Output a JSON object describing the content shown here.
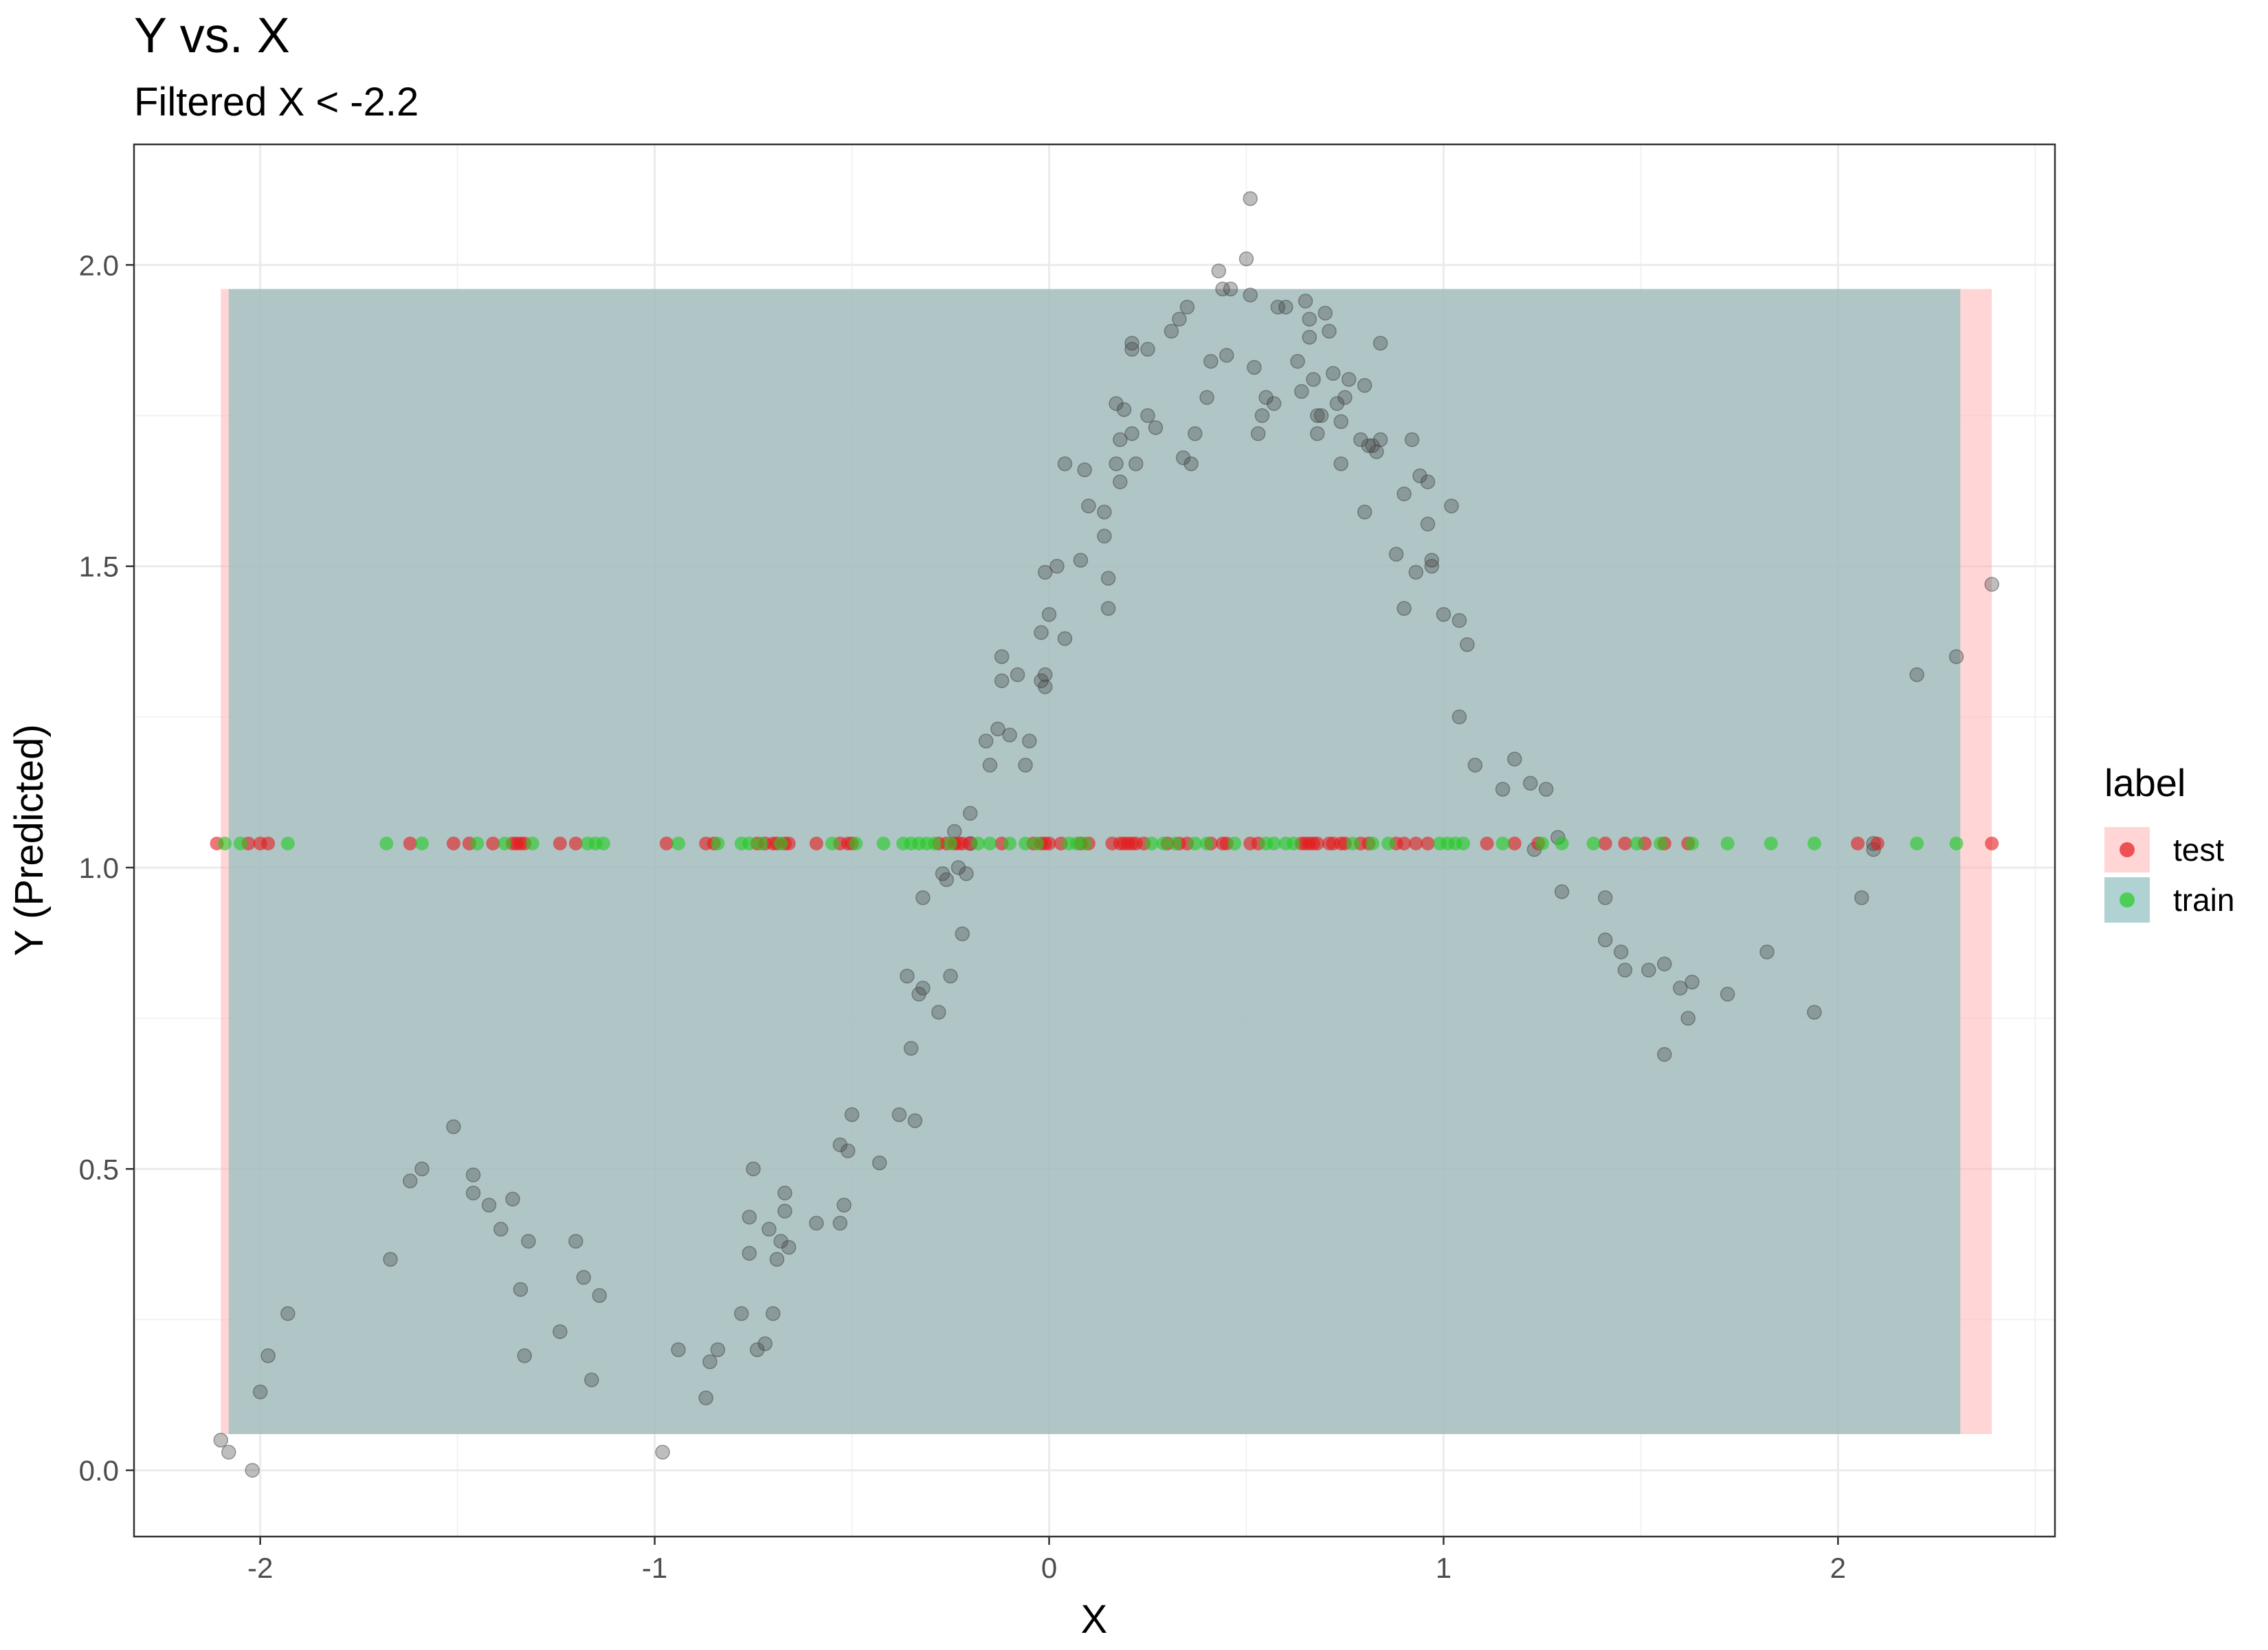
{
  "chart_data": {
    "type": "scatter",
    "title": "Y vs. X",
    "subtitle": "Filtered X < -2.2",
    "xlabel": "X",
    "ylabel": "Y (Predicted)",
    "xlim": [
      -2.32,
      2.55
    ],
    "ylim": [
      -0.11,
      2.2
    ],
    "x_ticks": [
      -2,
      -1,
      0,
      1,
      2
    ],
    "x_tick_labels": [
      "-2",
      "-1",
      "0",
      "1",
      "2"
    ],
    "y_ticks": [
      0.0,
      0.5,
      1.0,
      1.5,
      2.0
    ],
    "y_tick_labels": [
      "0.0",
      "0.5",
      "1.0",
      "1.5",
      "2.0"
    ],
    "grid": true,
    "legend": {
      "title": "label",
      "position": "right",
      "entries": [
        {
          "name": "test",
          "color": "#e41a1c"
        },
        {
          "name": "train",
          "color": "#22cc22"
        }
      ]
    },
    "bands": [
      {
        "name": "test",
        "x_range": [
          -2.1,
          2.39
        ],
        "y_range": [
          0.06,
          1.96
        ],
        "color": "#ffb3b3"
      },
      {
        "name": "train",
        "x_range": [
          -2.08,
          2.31
        ],
        "y_range": [
          0.06,
          1.96
        ],
        "color": "#8fbfbf"
      }
    ],
    "rug_y": 1.04,
    "series": [
      {
        "name": "predicted",
        "color": "#444444",
        "points": [
          [
            -2.1,
            0.05
          ],
          [
            -2.08,
            0.03
          ],
          [
            -2.02,
            0.0
          ],
          [
            -2.0,
            0.13
          ],
          [
            -1.98,
            0.19
          ],
          [
            -1.93,
            0.26
          ],
          [
            -1.67,
            0.35
          ],
          [
            -1.62,
            0.48
          ],
          [
            -1.59,
            0.5
          ],
          [
            -1.51,
            0.57
          ],
          [
            -1.46,
            0.49
          ],
          [
            -1.46,
            0.46
          ],
          [
            -1.42,
            0.44
          ],
          [
            -1.39,
            0.4
          ],
          [
            -1.36,
            0.45
          ],
          [
            -1.34,
            0.3
          ],
          [
            -1.33,
            0.19
          ],
          [
            -1.32,
            0.38
          ],
          [
            -1.24,
            0.23
          ],
          [
            -1.2,
            0.38
          ],
          [
            -1.18,
            0.32
          ],
          [
            -1.16,
            0.15
          ],
          [
            -1.14,
            0.29
          ],
          [
            -0.98,
            0.03
          ],
          [
            -0.94,
            0.2
          ],
          [
            -0.87,
            0.12
          ],
          [
            -0.86,
            0.18
          ],
          [
            -0.84,
            0.2
          ],
          [
            -0.78,
            0.26
          ],
          [
            -0.76,
            0.36
          ],
          [
            -0.76,
            0.42
          ],
          [
            -0.75,
            0.5
          ],
          [
            -0.74,
            0.2
          ],
          [
            -0.72,
            0.21
          ],
          [
            -0.71,
            0.4
          ],
          [
            -0.7,
            0.26
          ],
          [
            -0.69,
            0.35
          ],
          [
            -0.68,
            0.38
          ],
          [
            -0.67,
            0.46
          ],
          [
            -0.67,
            0.43
          ],
          [
            -0.66,
            0.37
          ],
          [
            -0.59,
            0.41
          ],
          [
            -0.53,
            0.41
          ],
          [
            -0.53,
            0.54
          ],
          [
            -0.52,
            0.44
          ],
          [
            -0.51,
            0.53
          ],
          [
            -0.5,
            0.59
          ],
          [
            -0.43,
            0.51
          ],
          [
            -0.38,
            0.59
          ],
          [
            -0.36,
            0.82
          ],
          [
            -0.35,
            0.7
          ],
          [
            -0.34,
            0.58
          ],
          [
            -0.33,
            0.79
          ],
          [
            -0.32,
            0.95
          ],
          [
            -0.32,
            0.8
          ],
          [
            -0.28,
            0.76
          ],
          [
            -0.27,
            0.99
          ],
          [
            -0.26,
            0.98
          ],
          [
            -0.25,
            0.82
          ],
          [
            -0.24,
            1.06
          ],
          [
            -0.23,
            1.0
          ],
          [
            -0.22,
            0.89
          ],
          [
            -0.21,
            0.99
          ],
          [
            -0.2,
            1.04
          ],
          [
            -0.2,
            1.09
          ],
          [
            -0.16,
            1.21
          ],
          [
            -0.15,
            1.17
          ],
          [
            -0.13,
            1.23
          ],
          [
            -0.12,
            1.35
          ],
          [
            -0.12,
            1.31
          ],
          [
            -0.1,
            1.22
          ],
          [
            -0.08,
            1.32
          ],
          [
            -0.06,
            1.17
          ],
          [
            -0.05,
            1.21
          ],
          [
            -0.02,
            1.31
          ],
          [
            -0.02,
            1.39
          ],
          [
            -0.01,
            1.3
          ],
          [
            -0.01,
            1.32
          ],
          [
            -0.01,
            1.49
          ],
          [
            0.0,
            1.42
          ],
          [
            0.02,
            1.5
          ],
          [
            0.04,
            1.38
          ],
          [
            0.04,
            1.67
          ],
          [
            0.08,
            1.51
          ],
          [
            0.09,
            1.66
          ],
          [
            0.1,
            1.6
          ],
          [
            0.14,
            1.55
          ],
          [
            0.14,
            1.59
          ],
          [
            0.15,
            1.43
          ],
          [
            0.15,
            1.48
          ],
          [
            0.17,
            1.67
          ],
          [
            0.17,
            1.77
          ],
          [
            0.18,
            1.64
          ],
          [
            0.18,
            1.71
          ],
          [
            0.19,
            1.76
          ],
          [
            0.21,
            1.86
          ],
          [
            0.21,
            1.87
          ],
          [
            0.21,
            1.72
          ],
          [
            0.22,
            1.67
          ],
          [
            0.25,
            1.86
          ],
          [
            0.25,
            1.75
          ],
          [
            0.27,
            1.73
          ],
          [
            0.31,
            1.89
          ],
          [
            0.33,
            1.91
          ],
          [
            0.34,
            1.68
          ],
          [
            0.35,
            1.93
          ],
          [
            0.36,
            1.67
          ],
          [
            0.37,
            1.72
          ],
          [
            0.4,
            1.78
          ],
          [
            0.41,
            1.84
          ],
          [
            0.43,
            1.99
          ],
          [
            0.44,
            1.96
          ],
          [
            0.45,
            1.85
          ],
          [
            0.46,
            1.96
          ],
          [
            0.5,
            2.01
          ],
          [
            0.51,
            1.95
          ],
          [
            0.51,
            2.11
          ],
          [
            0.52,
            1.83
          ],
          [
            0.53,
            1.72
          ],
          [
            0.54,
            1.75
          ],
          [
            0.55,
            1.78
          ],
          [
            0.57,
            1.77
          ],
          [
            0.58,
            1.93
          ],
          [
            0.6,
            1.93
          ],
          [
            0.63,
            1.84
          ],
          [
            0.64,
            1.79
          ],
          [
            0.65,
            1.94
          ],
          [
            0.66,
            1.88
          ],
          [
            0.66,
            1.91
          ],
          [
            0.67,
            1.81
          ],
          [
            0.68,
            1.72
          ],
          [
            0.68,
            1.75
          ],
          [
            0.69,
            1.75
          ],
          [
            0.7,
            1.92
          ],
          [
            0.71,
            1.89
          ],
          [
            0.72,
            1.82
          ],
          [
            0.73,
            1.77
          ],
          [
            0.74,
            1.74
          ],
          [
            0.74,
            1.67
          ],
          [
            0.75,
            1.78
          ],
          [
            0.76,
            1.81
          ],
          [
            0.79,
            1.71
          ],
          [
            0.8,
            1.59
          ],
          [
            0.8,
            1.8
          ],
          [
            0.81,
            1.7
          ],
          [
            0.82,
            1.7
          ],
          [
            0.83,
            1.69
          ],
          [
            0.84,
            1.71
          ],
          [
            0.84,
            1.87
          ],
          [
            0.88,
            1.52
          ],
          [
            0.9,
            1.43
          ],
          [
            0.9,
            1.62
          ],
          [
            0.92,
            1.71
          ],
          [
            0.93,
            1.49
          ],
          [
            0.94,
            1.65
          ],
          [
            0.96,
            1.57
          ],
          [
            0.96,
            1.64
          ],
          [
            0.97,
            1.5
          ],
          [
            0.97,
            1.51
          ],
          [
            1.0,
            1.42
          ],
          [
            1.02,
            1.6
          ],
          [
            1.04,
            1.25
          ],
          [
            1.04,
            1.41
          ],
          [
            1.06,
            1.37
          ],
          [
            1.08,
            1.17
          ],
          [
            1.15,
            1.13
          ],
          [
            1.18,
            1.18
          ],
          [
            1.22,
            1.14
          ],
          [
            1.23,
            1.03
          ],
          [
            1.26,
            1.13
          ],
          [
            1.29,
            1.05
          ],
          [
            1.3,
            0.96
          ],
          [
            1.41,
            0.95
          ],
          [
            1.41,
            0.88
          ],
          [
            1.45,
            0.86
          ],
          [
            1.46,
            0.83
          ],
          [
            1.52,
            0.83
          ],
          [
            1.56,
            0.84
          ],
          [
            1.56,
            0.69
          ],
          [
            1.6,
            0.8
          ],
          [
            1.62,
            0.75
          ],
          [
            1.63,
            0.81
          ],
          [
            1.72,
            0.79
          ],
          [
            1.82,
            0.86
          ],
          [
            1.94,
            0.76
          ],
          [
            2.06,
            0.95
          ],
          [
            2.09,
            1.04
          ],
          [
            2.09,
            1.03
          ],
          [
            2.2,
            1.32
          ],
          [
            2.3,
            1.35
          ],
          [
            2.39,
            1.47
          ]
        ]
      },
      {
        "name": "test",
        "color": "#e41a1c",
        "x": [
          -2.11,
          -2.03,
          -2.0,
          -1.98,
          -1.62,
          -1.51,
          -1.47,
          -1.41,
          -1.36,
          -1.35,
          -1.34,
          -1.33,
          -1.24,
          -1.2,
          -0.97,
          -0.87,
          -0.85,
          -0.74,
          -0.72,
          -0.7,
          -0.69,
          -0.67,
          -0.66,
          -0.59,
          -0.53,
          -0.51,
          -0.5,
          -0.28,
          -0.26,
          -0.24,
          -0.23,
          -0.22,
          -0.2,
          -0.12,
          -0.04,
          -0.02,
          -0.01,
          0.0,
          0.03,
          0.08,
          0.1,
          0.16,
          0.18,
          0.19,
          0.2,
          0.21,
          0.22,
          0.24,
          0.3,
          0.33,
          0.35,
          0.41,
          0.44,
          0.45,
          0.51,
          0.53,
          0.64,
          0.65,
          0.66,
          0.67,
          0.68,
          0.71,
          0.72,
          0.74,
          0.75,
          0.79,
          0.81,
          0.88,
          0.9,
          0.93,
          0.96,
          1.11,
          1.18,
          1.24,
          1.41,
          1.46,
          1.51,
          1.56,
          1.62,
          2.05,
          2.1,
          2.39
        ]
      },
      {
        "name": "train",
        "color": "#22cc22",
        "x": [
          -2.09,
          -2.05,
          -1.93,
          -1.68,
          -1.59,
          -1.45,
          -1.38,
          -1.31,
          -1.17,
          -1.15,
          -1.13,
          -0.94,
          -0.84,
          -0.78,
          -0.76,
          -0.73,
          -0.68,
          -0.55,
          -0.49,
          -0.42,
          -0.37,
          -0.35,
          -0.33,
          -0.31,
          -0.29,
          -0.25,
          -0.18,
          -0.15,
          -0.1,
          -0.06,
          -0.03,
          0.05,
          0.07,
          0.09,
          0.26,
          0.29,
          0.32,
          0.37,
          0.4,
          0.47,
          0.55,
          0.57,
          0.6,
          0.62,
          0.77,
          0.82,
          0.86,
          0.99,
          1.01,
          1.03,
          1.05,
          1.15,
          1.25,
          1.3,
          1.38,
          1.49,
          1.55,
          1.63,
          1.72,
          1.83,
          1.94,
          2.2,
          2.3
        ]
      }
    ]
  }
}
